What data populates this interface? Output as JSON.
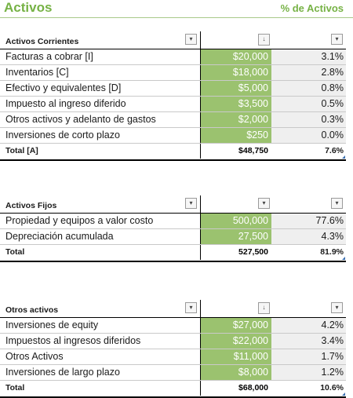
{
  "header": {
    "title": "Activos",
    "pct_label": "% de Activos"
  },
  "current_assets": {
    "heading": "Activos Corrientes",
    "rows": [
      {
        "label": "Facturas a cobrar [I]",
        "value": "$20,000",
        "pct": "3.1%"
      },
      {
        "label": "Inventarios   [C]",
        "value": "$18,000",
        "pct": "2.8%"
      },
      {
        "label": "Efectivo y equivalentes   [D]",
        "value": "$5,000",
        "pct": "0.8%"
      },
      {
        "label": "Impuesto al ingreso diferido",
        "value": "$3,500",
        "pct": "0.5%"
      },
      {
        "label": "Otros activos y adelanto de gastos",
        "value": "$2,000",
        "pct": "0.3%"
      },
      {
        "label": "Inversiones de corto plazo",
        "value": "$250",
        "pct": "0.0%"
      }
    ],
    "total": {
      "label": "Total   [A]",
      "value": "$48,750",
      "pct": "7.6%"
    }
  },
  "fixed_assets": {
    "heading": "Activos Fijos",
    "rows": [
      {
        "label": "Propiedad y equipos a valor costo",
        "value": "500,000",
        "pct": "77.6%"
      },
      {
        "label": "Depreciación acumulada",
        "value": "27,500",
        "pct": "4.3%"
      }
    ],
    "total": {
      "label": "Total",
      "value": "527,500",
      "pct": "81.9%"
    }
  },
  "other_assets": {
    "heading": "Otros activos",
    "rows": [
      {
        "label": "Inversiones de equity",
        "value": "$27,000",
        "pct": "4.2%"
      },
      {
        "label": "Impuestos al ingresos diferidos",
        "value": "$22,000",
        "pct": "3.4%"
      },
      {
        "label": "Otros Activos",
        "value": "$11,000",
        "pct": "1.7%"
      },
      {
        "label": "Inversiones de largo plazo",
        "value": "$8,000",
        "pct": "1.2%"
      }
    ],
    "total": {
      "label": "Total",
      "value": "$68,000",
      "pct": "10.6%"
    }
  },
  "icons": {
    "filter": "filter-dropdown-icon",
    "sort": "sort-descending-dropdown-icon"
  }
}
